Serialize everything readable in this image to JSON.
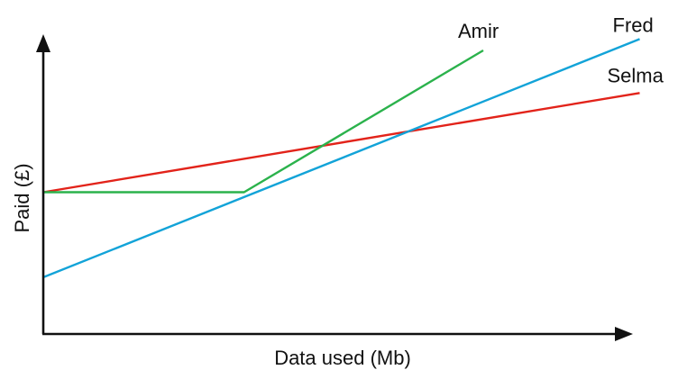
{
  "chart_data": {
    "type": "line",
    "xlabel": "Data used (Mb)",
    "ylabel": "Paid (£)",
    "xlim": [
      0,
      100
    ],
    "ylim": [
      0,
      100
    ],
    "ticks_shown": false,
    "grid": false,
    "legend": "direct labels at line ends",
    "series": [
      {
        "name": "Amir",
        "color": "#2bb24c",
        "points": [
          [
            0,
            50
          ],
          [
            34,
            50
          ],
          [
            74.5,
            100
          ]
        ]
      },
      {
        "name": "Fred",
        "color": "#12a3d8",
        "points": [
          [
            0,
            20
          ],
          [
            101,
            104
          ]
        ]
      },
      {
        "name": "Selma",
        "color": "#e2231a",
        "points": [
          [
            0,
            50
          ],
          [
            101,
            85
          ]
        ]
      }
    ]
  }
}
